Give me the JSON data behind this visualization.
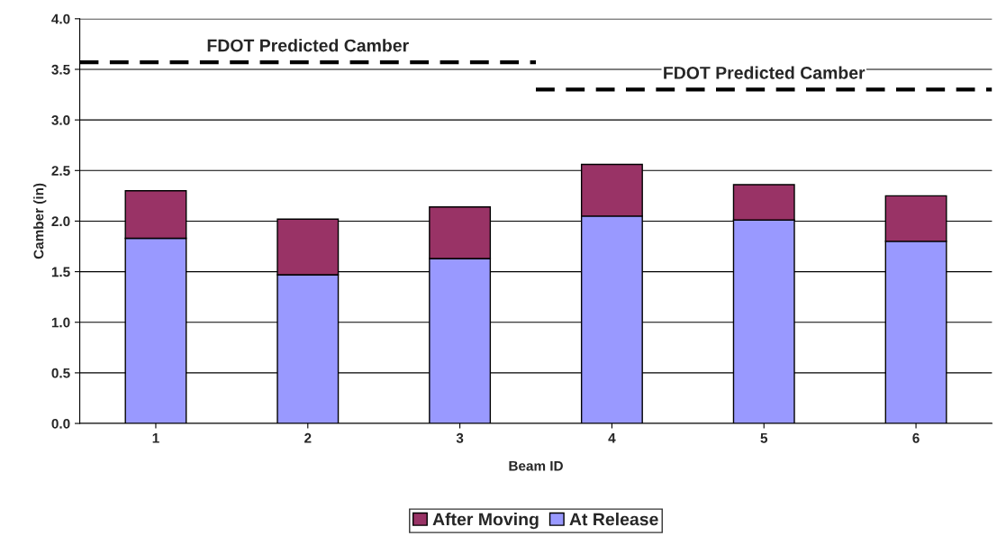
{
  "chart_data": {
    "type": "bar",
    "stacked": true,
    "xlabel": "Beam ID",
    "ylabel": "Camber (in)",
    "categories": [
      "1",
      "2",
      "3",
      "4",
      "5",
      "6"
    ],
    "series": [
      {
        "name": "At Release",
        "color": "#9999ff",
        "values": [
          1.83,
          1.47,
          1.63,
          2.05,
          2.01,
          1.8
        ]
      },
      {
        "name": "After Moving",
        "color": "#993366",
        "values": [
          0.47,
          0.55,
          0.51,
          0.51,
          0.35,
          0.45
        ]
      }
    ],
    "ylim": [
      0,
      4
    ],
    "yticks": [
      {
        "value": 0,
        "label": "0.0"
      },
      {
        "value": 0.5,
        "label": "0.5"
      },
      {
        "value": 1,
        "label": "1.0"
      },
      {
        "value": 1.5,
        "label": "1.5"
      },
      {
        "value": 2,
        "label": "2.0"
      },
      {
        "value": 2.5,
        "label": "2.5"
      },
      {
        "value": 3,
        "label": "3.0"
      },
      {
        "value": 3.5,
        "label": "3.5"
      },
      {
        "value": 4,
        "label": "4.0"
      }
    ],
    "ref_lines": [
      {
        "axis": "y",
        "value": 3.57,
        "label": "FDOT Predicted Camber",
        "line_style": "dashed",
        "color": "#000000"
      },
      {
        "axis": "y",
        "value": 3.3,
        "label": "FDOT Predicted Camber",
        "line_style": "dashed",
        "color": "#000000"
      }
    ],
    "grid": "y",
    "legend": "bottom"
  }
}
